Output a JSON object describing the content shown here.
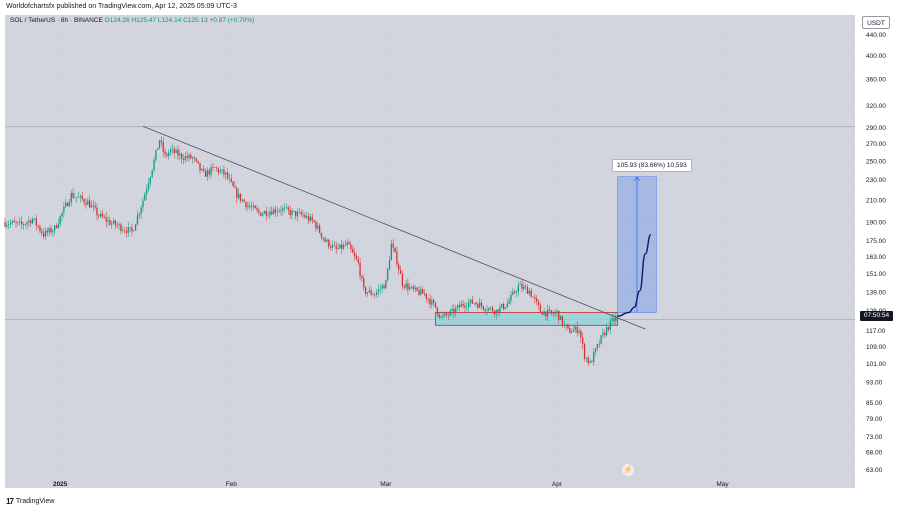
{
  "header": {
    "publisher_line": "Worldofchartsfx published on TradingView.com, Apr 12, 2025 05:09 UTC-3"
  },
  "legend": {
    "symbol": "SOL / TetherUS · 8h · BINANCE",
    "open": "O124.26",
    "high": "H125.47",
    "low": "L124.14",
    "close": "C125.13",
    "change": "+0.87 (+0.70%)"
  },
  "currency": "USDT",
  "current_price_tag": "07:50:54",
  "measure_label": "105.93 (83.66%) 10,593",
  "footer": {
    "brand": "TradingView",
    "logo": "17"
  },
  "badge_icon": "lightning-icon",
  "colors": {
    "bg": "#d3d5de",
    "up": "#089981",
    "down": "#d32f2f",
    "trendline": "#4a4f5e",
    "zone_fill": "#8fd3dc",
    "zone_border": "#c62828",
    "measure_fill": "#7fa2e6",
    "projection": "#0b1a66"
  },
  "chart_data": {
    "type": "candlestick",
    "scale": "log",
    "y_ticks": [
      440,
      400,
      360,
      320,
      290,
      270,
      250,
      230,
      210,
      190,
      175,
      163,
      151,
      139,
      128,
      117,
      109,
      101,
      93,
      85,
      79,
      73,
      68,
      63
    ],
    "y_tick_labels": [
      "440.00",
      "400.00",
      "360.00",
      "320.00",
      "290.00",
      "270.00",
      "250.00",
      "230.00",
      "210.00",
      "190.00",
      "175.00",
      "163.00",
      "151.00",
      "139.00",
      "128.00",
      "117.00",
      "109.00",
      "101.00",
      "93.00",
      "85.00",
      "79.00",
      "73.00",
      "68.00",
      "63.00"
    ],
    "x_ticks": [
      {
        "label": "2025",
        "date": "2025-01-01"
      },
      {
        "label": "Feb",
        "date": "2025-02-01"
      },
      {
        "label": "Mar",
        "date": "2025-03-01"
      },
      {
        "label": "Apr",
        "date": "2025-04-01"
      },
      {
        "label": "May",
        "date": "2025-05-01"
      }
    ],
    "x_range": [
      "2024-12-22",
      "2025-05-25"
    ],
    "y_range": [
      58,
      480
    ],
    "close_path": [
      [
        "2024-12-22",
        190
      ],
      [
        "2024-12-25",
        188
      ],
      [
        "2024-12-27",
        193
      ],
      [
        "2024-12-29",
        180
      ],
      [
        "2024-12-31",
        185
      ],
      [
        "2025-01-03",
        215
      ],
      [
        "2025-01-06",
        208
      ],
      [
        "2025-01-08",
        196
      ],
      [
        "2025-01-10",
        190
      ],
      [
        "2025-01-12",
        186
      ],
      [
        "2025-01-14",
        182
      ],
      [
        "2025-01-16",
        210
      ],
      [
        "2025-01-18",
        250
      ],
      [
        "2025-01-19",
        275
      ],
      [
        "2025-01-20",
        255
      ],
      [
        "2025-01-21",
        262
      ],
      [
        "2025-01-23",
        255
      ],
      [
        "2025-01-25",
        253
      ],
      [
        "2025-01-27",
        235
      ],
      [
        "2025-01-29",
        242
      ],
      [
        "2025-01-31",
        235
      ],
      [
        "2025-02-02",
        215
      ],
      [
        "2025-02-04",
        205
      ],
      [
        "2025-02-06",
        198
      ],
      [
        "2025-02-08",
        200
      ],
      [
        "2025-02-10",
        202
      ],
      [
        "2025-02-12",
        198
      ],
      [
        "2025-02-14",
        196
      ],
      [
        "2025-02-16",
        190
      ],
      [
        "2025-02-18",
        175
      ],
      [
        "2025-02-20",
        168
      ],
      [
        "2025-02-22",
        172
      ],
      [
        "2025-02-24",
        158
      ],
      [
        "2025-02-25",
        140
      ],
      [
        "2025-02-27",
        138
      ],
      [
        "2025-03-01",
        145
      ],
      [
        "2025-03-02",
        172
      ],
      [
        "2025-03-03",
        160
      ],
      [
        "2025-03-04",
        145
      ],
      [
        "2025-03-06",
        140
      ],
      [
        "2025-03-08",
        138
      ],
      [
        "2025-03-10",
        130
      ],
      [
        "2025-03-11",
        124
      ],
      [
        "2025-03-13",
        127
      ],
      [
        "2025-03-15",
        132
      ],
      [
        "2025-03-17",
        133
      ],
      [
        "2025-03-19",
        130
      ],
      [
        "2025-03-21",
        128
      ],
      [
        "2025-03-23",
        132
      ],
      [
        "2025-03-25",
        143
      ],
      [
        "2025-03-27",
        140
      ],
      [
        "2025-03-29",
        128
      ],
      [
        "2025-03-31",
        126
      ],
      [
        "2025-04-01",
        127
      ],
      [
        "2025-04-02",
        121
      ],
      [
        "2025-04-03",
        117
      ],
      [
        "2025-04-05",
        118
      ],
      [
        "2025-04-06",
        105
      ],
      [
        "2025-04-07",
        101
      ],
      [
        "2025-04-08",
        107
      ],
      [
        "2025-04-09",
        113
      ],
      [
        "2025-04-10",
        118
      ],
      [
        "2025-04-11",
        122
      ],
      [
        "2025-04-12",
        125
      ]
    ],
    "trendline": [
      [
        "2025-01-16",
        292
      ],
      [
        "2025-04-17",
        118
      ]
    ],
    "horizontal_lines": [
      {
        "y": 292,
        "color": "#9598a1"
      },
      {
        "y": 123,
        "color": "#9598a1"
      }
    ],
    "zone": {
      "x": [
        "2025-03-10",
        "2025-04-12"
      ],
      "y": [
        120,
        127
      ]
    },
    "measure_box": {
      "x": [
        "2025-04-12",
        "2025-04-19"
      ],
      "y": [
        127,
        233
      ],
      "label": "105.93 (83.66%) 10,593"
    },
    "projection": [
      [
        "2025-04-12",
        125
      ],
      [
        "2025-04-14",
        127
      ],
      [
        "2025-04-15",
        130
      ],
      [
        "2025-04-16",
        140
      ],
      [
        "2025-04-17",
        165
      ],
      [
        "2025-04-18",
        180
      ]
    ]
  }
}
